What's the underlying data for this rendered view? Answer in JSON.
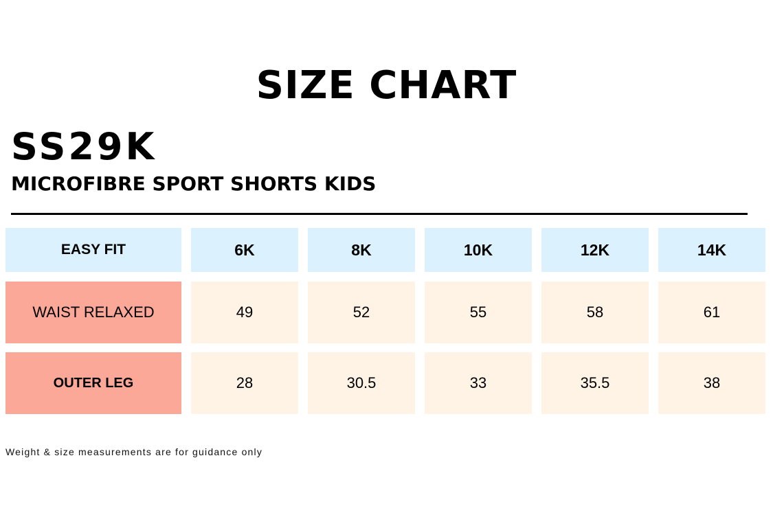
{
  "title": "SIZE CHART",
  "product": {
    "code": "SS29K",
    "name": "MICROFIBRE SPORT SHORTS KIDS"
  },
  "table": {
    "header": [
      "EASY FIT",
      "6K",
      "8K",
      "10K",
      "12K",
      "14K"
    ],
    "rows": [
      {
        "label": "WAIST RELAXED",
        "values": [
          "49",
          "52",
          "55",
          "58",
          "61"
        ]
      },
      {
        "label": "OUTER LEG",
        "values": [
          "28",
          "30.5",
          "33",
          "35.5",
          "38"
        ]
      }
    ]
  },
  "footnote": "Weight & size measurements are for guidance only",
  "colors": {
    "header_bg": "#dbf1fd",
    "label_bg": "#fba898",
    "value_bg": "#fef3e4"
  }
}
